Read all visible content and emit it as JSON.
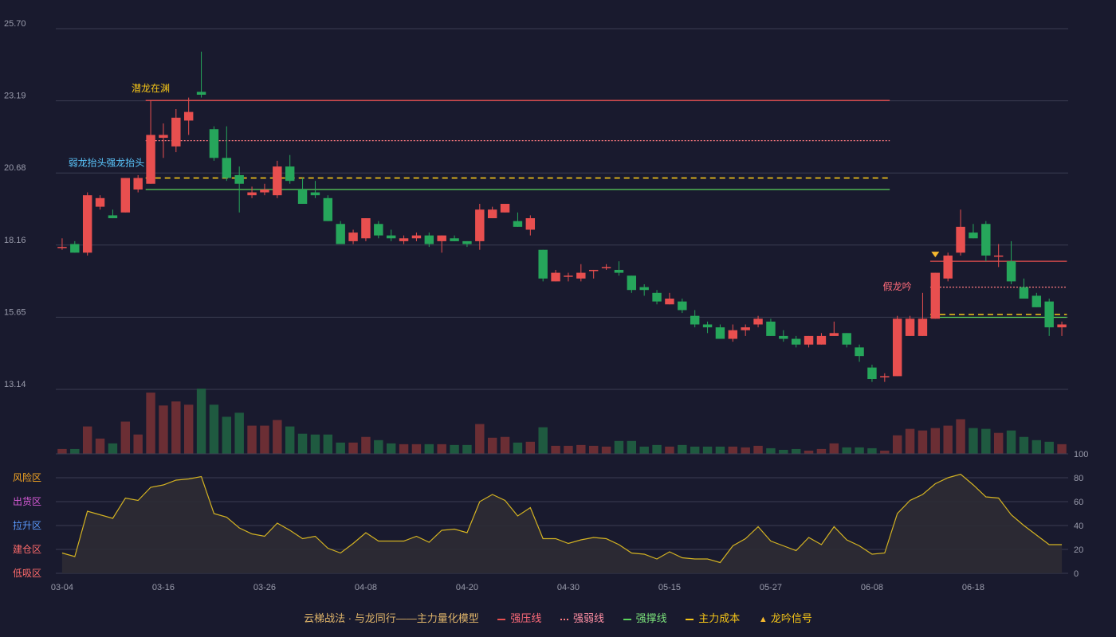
{
  "chart_data": {
    "type": "candlestick",
    "y_ticks": [
      "25.70",
      "23.19",
      "20.68",
      "18.16",
      "15.65",
      "13.14"
    ],
    "ylim": [
      13.14,
      25.7
    ],
    "x_ticks": [
      "03-04",
      "03-16",
      "03-26",
      "04-08",
      "04-20",
      "04-30",
      "05-15",
      "05-27",
      "06-08",
      "06-18"
    ],
    "x_tick_index": [
      0,
      8,
      16,
      24,
      32,
      40,
      48,
      56,
      64,
      72
    ],
    "indicator_ticks": [
      "100",
      "80",
      "60",
      "40",
      "20",
      "0"
    ],
    "zone_labels": [
      "风险区",
      "出货区",
      "拉升区",
      "建仓区",
      "低吸区"
    ],
    "candles": [
      [
        18.1,
        18.1,
        18.4,
        18.0
      ],
      [
        18.2,
        17.9,
        18.3,
        17.9
      ],
      [
        17.9,
        19.9,
        20.0,
        17.8
      ],
      [
        19.5,
        19.8,
        19.9,
        19.4
      ],
      [
        19.2,
        19.1,
        19.4,
        19.1
      ],
      [
        19.3,
        20.5,
        20.5,
        19.3
      ],
      [
        20.1,
        20.5,
        20.6,
        20.0
      ],
      [
        20.3,
        22.0,
        23.2,
        20.3
      ],
      [
        21.9,
        22.0,
        22.4,
        21.2
      ],
      [
        21.6,
        22.6,
        22.9,
        21.4
      ],
      [
        22.5,
        22.8,
        23.3,
        22.0
      ],
      [
        23.5,
        23.4,
        24.9,
        23.3
      ],
      [
        22.2,
        21.2,
        22.3,
        21.1
      ],
      [
        21.2,
        20.5,
        22.3,
        20.4
      ],
      [
        20.6,
        20.3,
        20.9,
        19.3
      ],
      [
        19.9,
        20.0,
        20.2,
        19.8
      ],
      [
        20.0,
        20.1,
        20.3,
        19.9
      ],
      [
        19.9,
        20.9,
        21.1,
        19.8
      ],
      [
        20.9,
        20.4,
        21.3,
        20.3
      ],
      [
        20.1,
        19.6,
        20.5,
        19.6
      ],
      [
        20.0,
        19.9,
        20.4,
        19.8
      ],
      [
        19.8,
        19.0,
        19.9,
        19.0
      ],
      [
        18.9,
        18.2,
        19.0,
        18.2
      ],
      [
        18.3,
        18.6,
        18.7,
        18.2
      ],
      [
        18.4,
        19.1,
        19.1,
        18.3
      ],
      [
        18.9,
        18.5,
        19.0,
        18.4
      ],
      [
        18.5,
        18.4,
        18.7,
        18.3
      ],
      [
        18.3,
        18.4,
        18.5,
        18.2
      ],
      [
        18.4,
        18.5,
        18.6,
        18.3
      ],
      [
        18.5,
        18.2,
        18.6,
        18.1
      ],
      [
        18.3,
        18.5,
        18.5,
        17.9
      ],
      [
        18.4,
        18.3,
        18.5,
        18.3
      ],
      [
        18.3,
        18.2,
        18.3,
        18.1
      ],
      [
        18.3,
        19.4,
        19.6,
        18.0
      ],
      [
        19.1,
        19.4,
        19.5,
        19.1
      ],
      [
        19.3,
        19.6,
        19.6,
        19.3
      ],
      [
        19.0,
        18.8,
        19.3,
        18.8
      ],
      [
        18.7,
        19.1,
        19.2,
        18.5
      ],
      [
        18.0,
        17.0,
        18.0,
        16.9
      ],
      [
        16.9,
        17.2,
        17.3,
        16.9
      ],
      [
        17.1,
        17.1,
        17.2,
        16.9
      ],
      [
        17.0,
        17.2,
        17.5,
        16.9
      ],
      [
        17.3,
        17.3,
        17.3,
        17.0
      ],
      [
        17.4,
        17.4,
        17.5,
        17.3
      ],
      [
        17.3,
        17.2,
        17.6,
        17.1
      ],
      [
        17.1,
        16.6,
        17.1,
        16.5
      ],
      [
        16.7,
        16.6,
        16.8,
        16.4
      ],
      [
        16.5,
        16.2,
        16.6,
        16.1
      ],
      [
        16.1,
        16.3,
        16.5,
        16.1
      ],
      [
        16.2,
        15.9,
        16.3,
        15.8
      ],
      [
        15.7,
        15.4,
        15.9,
        15.3
      ],
      [
        15.4,
        15.3,
        15.5,
        15.1
      ],
      [
        15.3,
        14.9,
        15.4,
        14.9
      ],
      [
        14.9,
        15.2,
        15.4,
        14.8
      ],
      [
        15.2,
        15.3,
        15.4,
        15.0
      ],
      [
        15.4,
        15.6,
        15.7,
        15.3
      ],
      [
        15.5,
        15.0,
        15.6,
        15.0
      ],
      [
        15.0,
        14.9,
        15.2,
        14.8
      ],
      [
        14.9,
        14.7,
        15.0,
        14.6
      ],
      [
        14.7,
        15.0,
        15.0,
        14.6
      ],
      [
        14.7,
        15.0,
        15.1,
        14.7
      ],
      [
        15.0,
        15.1,
        15.5,
        15.0
      ],
      [
        15.1,
        14.7,
        15.1,
        14.6
      ],
      [
        14.6,
        14.3,
        14.7,
        14.1
      ],
      [
        13.9,
        13.5,
        14.0,
        13.4
      ],
      [
        13.6,
        13.6,
        13.7,
        13.4
      ],
      [
        13.6,
        15.6,
        15.7,
        13.6
      ],
      [
        15.0,
        15.6,
        15.7,
        15.0
      ],
      [
        15.0,
        15.6,
        16.5,
        15.0
      ],
      [
        15.6,
        17.2,
        17.2,
        15.6
      ],
      [
        17.0,
        17.8,
        17.9,
        16.9
      ],
      [
        17.9,
        18.8,
        19.4,
        17.8
      ],
      [
        18.6,
        18.4,
        18.9,
        18.4
      ],
      [
        18.9,
        17.8,
        19.0,
        17.6
      ],
      [
        17.8,
        17.8,
        18.2,
        17.4
      ],
      [
        17.6,
        16.9,
        18.3,
        16.8
      ],
      [
        16.7,
        16.3,
        17.0,
        16.3
      ],
      [
        16.4,
        16.0,
        16.5,
        16.0
      ],
      [
        16.2,
        15.3,
        16.3,
        15.0
      ],
      [
        15.3,
        15.4,
        15.5,
        15.0
      ]
    ],
    "volume": [
      6,
      6,
      34,
      19,
      13,
      40,
      24,
      76,
      60,
      65,
      61,
      81,
      61,
      46,
      51,
      35,
      35,
      42,
      34,
      25,
      24,
      24,
      14,
      14,
      21,
      17,
      13,
      12,
      12,
      12,
      12,
      11,
      11,
      37,
      20,
      21,
      14,
      15,
      33,
      10,
      10,
      11,
      10,
      9,
      16,
      16,
      9,
      11,
      9,
      11,
      9,
      9,
      9,
      9,
      8,
      10,
      7,
      5,
      6,
      4,
      6,
      13,
      8,
      8,
      7,
      4,
      23,
      31,
      29,
      32,
      35,
      43,
      32,
      31,
      26,
      29,
      21,
      17,
      15,
      12
    ],
    "oscillator": [
      17,
      14,
      52,
      49,
      46,
      63,
      61,
      72,
      74,
      78,
      79,
      81,
      50,
      47,
      38,
      33,
      31,
      42,
      36,
      29,
      31,
      21,
      17,
      25,
      34,
      27,
      27,
      27,
      31,
      26,
      36,
      37,
      34,
      60,
      66,
      61,
      48,
      55,
      29,
      29,
      25,
      28,
      30,
      29,
      24,
      17,
      16,
      12,
      18,
      13,
      12,
      12,
      9,
      23,
      29,
      39,
      27,
      23,
      19,
      30,
      24,
      39,
      28,
      23,
      16,
      17,
      50,
      61,
      66,
      75,
      80,
      83,
      74,
      64,
      63,
      49,
      40,
      32,
      24,
      24
    ],
    "levels": [
      {
        "name": "强压线",
        "value": 23.2,
        "color": "#e84f4f",
        "style": "solid",
        "from": 7,
        "to": 65
      },
      {
        "name": "强弱线",
        "value": 21.8,
        "color": "#ff7a80",
        "style": "dotted",
        "from": 7,
        "to": 65
      },
      {
        "name": "主力成本",
        "value": 20.5,
        "color": "#f5c518",
        "style": "dashed",
        "from": 7,
        "to": 65
      },
      {
        "name": "强撑线",
        "value": 20.1,
        "color": "#5bd35b",
        "style": "solid",
        "from": 7,
        "to": 65
      },
      {
        "name": "强压线",
        "value": 17.6,
        "color": "#e84f4f",
        "style": "solid",
        "from": 69,
        "to": 79
      },
      {
        "name": "强弱线",
        "value": 16.7,
        "color": "#ff7a80",
        "style": "dotted",
        "from": 69,
        "to": 79
      },
      {
        "name": "主力成本",
        "value": 15.75,
        "color": "#f5c518",
        "style": "dashed",
        "from": 69,
        "to": 79
      },
      {
        "name": "强撑线",
        "value": 15.65,
        "color": "#5bd35b",
        "style": "solid",
        "from": 69,
        "to": 79
      }
    ],
    "annotations": [
      {
        "text": "潜龙在渊",
        "index": 7,
        "price": 23.4,
        "color": "#f5c518"
      },
      {
        "text": "弱龙抬头",
        "index": 2,
        "price": 20.8,
        "color": "#5bc8ff"
      },
      {
        "text": "强龙抬头",
        "index": 5,
        "price": 20.8,
        "color": "#5bc8ff"
      },
      {
        "text": "假龙吟",
        "index": 66,
        "price": 16.5,
        "color": "#ff6b7a"
      }
    ],
    "signals": [
      {
        "index": 69,
        "price": 17.6,
        "label": "龙吟信号"
      }
    ],
    "colors": {
      "up": "#e84f4f",
      "down": "#26a65b",
      "grid": "#3a3c52",
      "osc_line": "#d4b322",
      "osc_fill": "#2d2b34"
    }
  },
  "legend": {
    "model": "云梯战法 · 与龙同行——主力量化模型",
    "items": [
      "强压线",
      "强弱线",
      "强撑线",
      "主力成本",
      "龙吟信号"
    ]
  }
}
